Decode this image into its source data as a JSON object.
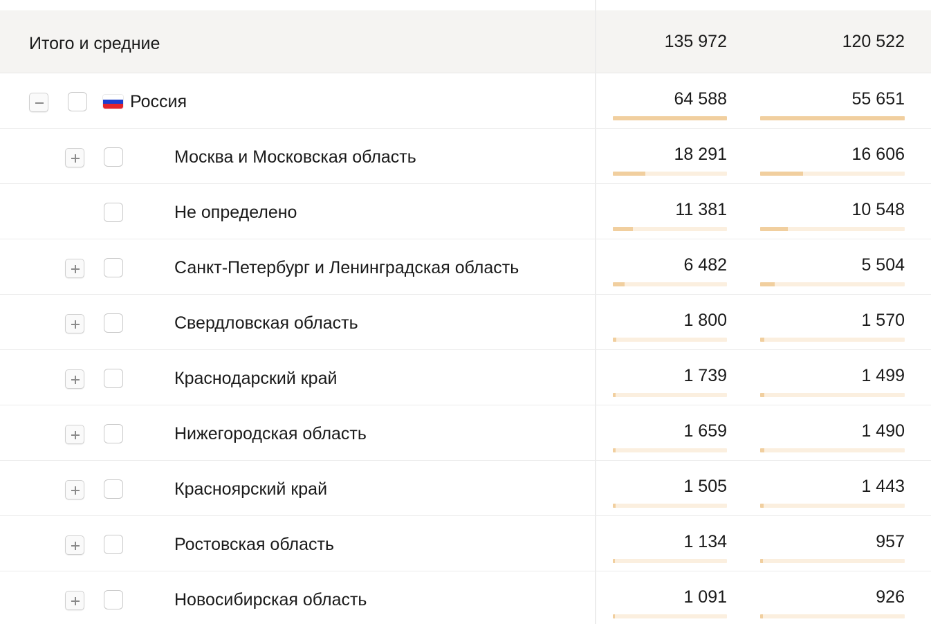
{
  "totals": {
    "label": "Итого и средние",
    "values": [
      "135 972",
      "120 522"
    ]
  },
  "rows": [
    {
      "label": "Россия",
      "level": 0,
      "expander": "minus",
      "flag": true,
      "values": [
        "64 588",
        "55 651"
      ],
      "share": [
        1.0,
        1.0
      ]
    },
    {
      "label": "Москва и Московская область",
      "level": 1,
      "expander": "plus",
      "flag": false,
      "values": [
        "18 291",
        "16 606"
      ],
      "share": [
        0.283,
        0.298
      ]
    },
    {
      "label": "Не определено",
      "level": 1,
      "expander": "none",
      "flag": false,
      "values": [
        "11 381",
        "10 548"
      ],
      "share": [
        0.176,
        0.19
      ]
    },
    {
      "label": "Санкт-Петербург и Ленинградская область",
      "level": 1,
      "expander": "plus",
      "flag": false,
      "values": [
        "6 482",
        "5 504"
      ],
      "share": [
        0.1,
        0.099
      ]
    },
    {
      "label": "Свердловская область",
      "level": 1,
      "expander": "plus",
      "flag": false,
      "values": [
        "1 800",
        "1 570"
      ],
      "share": [
        0.028,
        0.028
      ]
    },
    {
      "label": "Краснодарский край",
      "level": 1,
      "expander": "plus",
      "flag": false,
      "values": [
        "1 739",
        "1 499"
      ],
      "share": [
        0.027,
        0.027
      ]
    },
    {
      "label": "Нижегородская область",
      "level": 1,
      "expander": "plus",
      "flag": false,
      "values": [
        "1 659",
        "1 490"
      ],
      "share": [
        0.026,
        0.027
      ]
    },
    {
      "label": "Красноярский край",
      "level": 1,
      "expander": "plus",
      "flag": false,
      "values": [
        "1 505",
        "1 443"
      ],
      "share": [
        0.023,
        0.026
      ]
    },
    {
      "label": "Ростовская область",
      "level": 1,
      "expander": "plus",
      "flag": false,
      "values": [
        "1 134",
        "957"
      ],
      "share": [
        0.018,
        0.017
      ]
    },
    {
      "label": "Новосибирская область",
      "level": 1,
      "expander": "plus",
      "flag": false,
      "values": [
        "1 091",
        "926"
      ],
      "share": [
        0.017,
        0.017
      ]
    }
  ],
  "colors": {
    "bar_fill": "#f1cf9f",
    "bar_track": "#fbefdf",
    "totals_bg": "#f5f4f2",
    "flag_white": "#ffffff",
    "flag_blue": "#1c3ecf",
    "flag_red": "#e3242b"
  }
}
